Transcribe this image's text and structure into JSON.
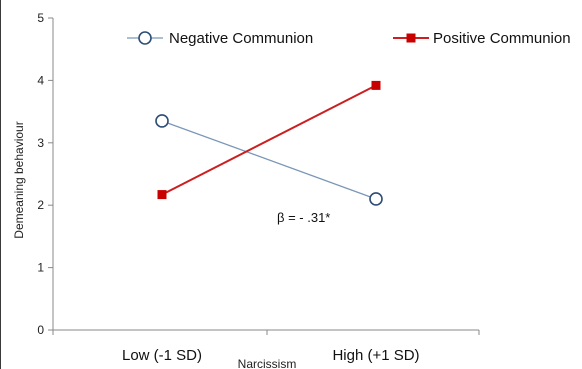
{
  "chart_data": {
    "type": "line",
    "title": "",
    "xlabel": "Narcissism",
    "ylabel": "Demeaning behaviour",
    "categories": [
      "Low (-1 SD)",
      "High (+1 SD)"
    ],
    "ylim": [
      0,
      5
    ],
    "yticks": [
      "0",
      "1",
      "2",
      "3",
      "4",
      "5"
    ],
    "grid": false,
    "legend_position": "top",
    "series": [
      {
        "name": "Negative Communion",
        "values": [
          3.35,
          2.1
        ],
        "color": "#7a97b8",
        "marker": "open-circle",
        "marker_color": "#2e4d77"
      },
      {
        "name": "Positive Communion",
        "values": [
          2.17,
          3.92
        ],
        "color": "#cc1f1f",
        "marker": "square",
        "marker_color": "#c80000"
      }
    ],
    "annotations": [
      {
        "text": "β = - .31*",
        "x": "High (+1 SD)",
        "y": 1.8
      }
    ]
  }
}
